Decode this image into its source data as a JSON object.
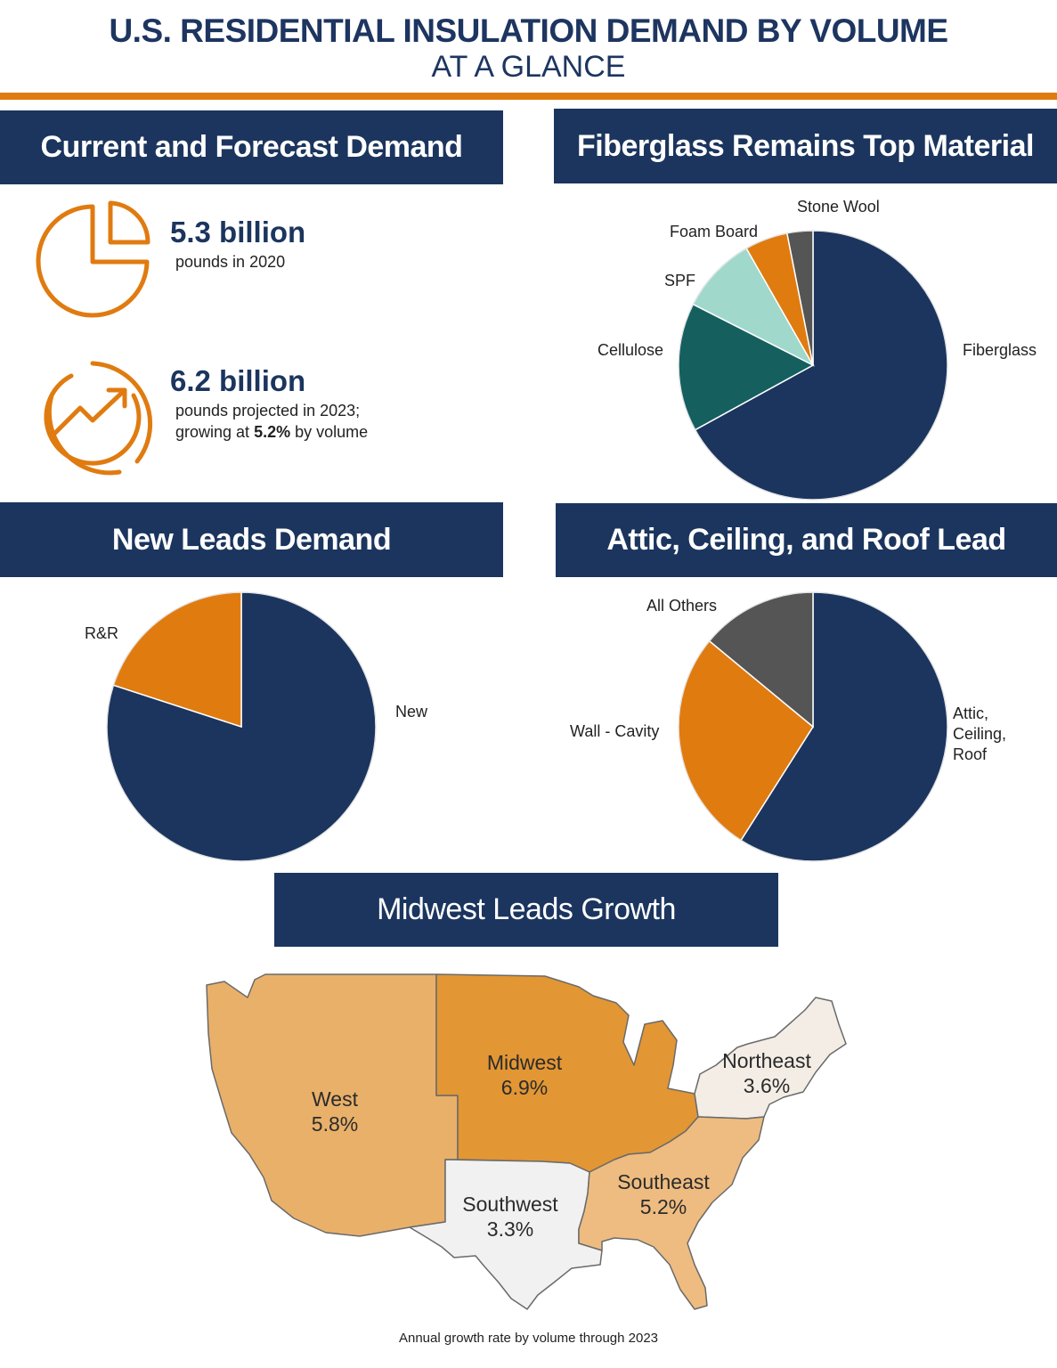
{
  "header": {
    "title": "U.S. RESIDENTIAL INSULATION DEMAND BY VOLUME",
    "subtitle": "AT A GLANCE"
  },
  "sections": {
    "current": "Current and Forecast Demand",
    "material": "Fiberglass Remains Top Material",
    "new_leads": "New Leads Demand",
    "attic": "Attic, Ceiling, and Roof Lead",
    "midwest": "Midwest Leads Growth"
  },
  "stats": {
    "stat1_value": "5.3 billion",
    "stat1_desc": "pounds in 2020",
    "stat2_value": "6.2 billion",
    "stat2_desc_line1": "pounds projected in 2023;",
    "stat2_desc_pre": "growing at ",
    "stat2_desc_bold": "5.2%",
    "stat2_desc_post": " by volume",
    "icon1": "pie-chart-icon",
    "icon2": "growth-trend-icon",
    "icon_color": "#e07b10"
  },
  "chart_data": [
    {
      "type": "pie",
      "labels": [
        "Fiberglass",
        "Cellulose",
        "SPF",
        "Foam Board",
        "Stone Wool"
      ],
      "values": [
        65,
        15,
        9,
        5,
        3
      ],
      "colors": [
        "#1b355e",
        "#15605f",
        "#a0d8cc",
        "#e07b10",
        "#555555"
      ]
    },
    {
      "type": "pie",
      "labels": [
        "New",
        "R&R"
      ],
      "values": [
        80,
        20
      ],
      "colors": [
        "#1b355e",
        "#e07b10"
      ]
    },
    {
      "type": "pie",
      "labels": [
        "Attic, Ceiling, Roof",
        "Wall - Cavity",
        "All Others"
      ],
      "values": [
        59,
        27,
        14
      ],
      "colors": [
        "#1b355e",
        "#e07b10",
        "#555555"
      ]
    },
    {
      "type": "map",
      "regions": [
        {
          "name": "West",
          "value": "5.8%",
          "color": "#e9b06a"
        },
        {
          "name": "Midwest",
          "value": "6.9%",
          "color": "#e29634"
        },
        {
          "name": "Northeast",
          "value": "3.6%",
          "color": "#f3ede5"
        },
        {
          "name": "Southwest",
          "value": "3.3%",
          "color": "#f1f1f1"
        },
        {
          "name": "Southeast",
          "value": "5.2%",
          "color": "#eebc80"
        }
      ],
      "caption": "Annual growth rate by volume through 2023"
    }
  ]
}
